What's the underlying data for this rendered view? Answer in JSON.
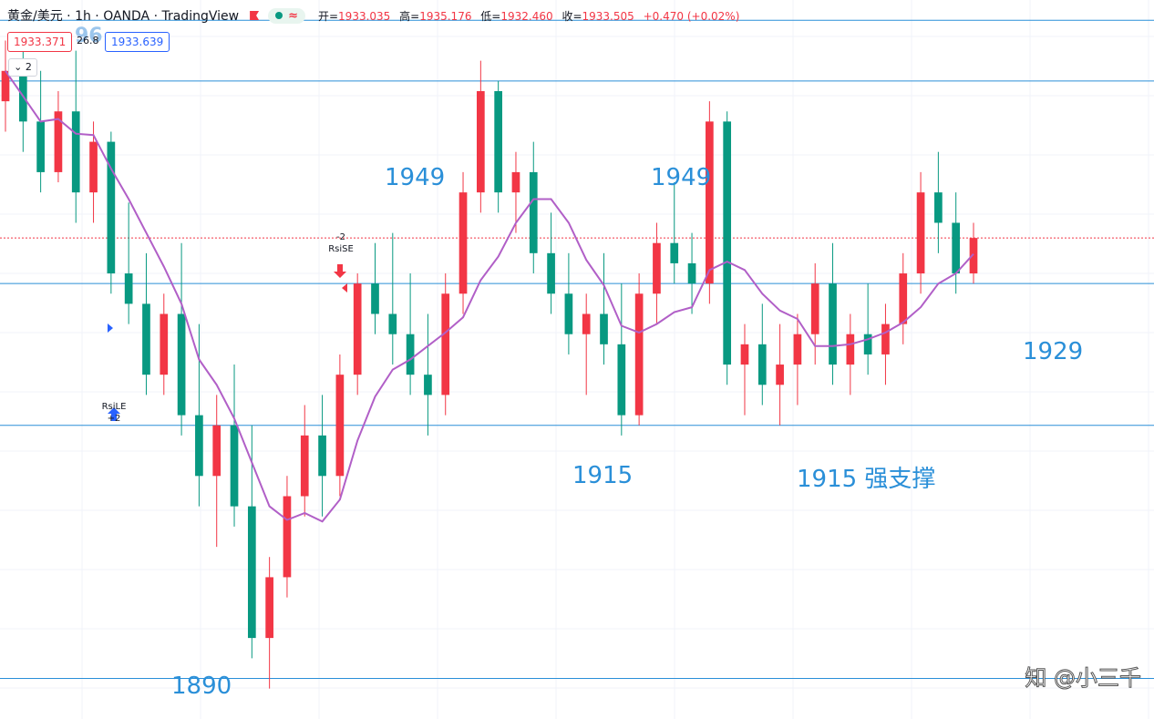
{
  "header": {
    "symbol": "黄金/美元 · 1h · OANDA · TradingView",
    "ohlc": [
      {
        "label": "开=",
        "value": "1933.035"
      },
      {
        "label": "高=",
        "value": "1935.176"
      },
      {
        "label": "低=",
        "value": "1932.460"
      },
      {
        "label": "收=",
        "value": "1933.505"
      }
    ],
    "change": "+0.470 (+0.02%)",
    "bid": "1933.371",
    "spread": "26.8",
    "ask": "1933.639",
    "indicator_count": "2",
    "ghost_text": "96"
  },
  "annotations": {
    "level_1949_left": "1949",
    "level_1949_right": "1949",
    "level_1929": "1929",
    "level_1915_left": "1915",
    "level_1915_right": "1915 强支撑",
    "level_1890": "1890",
    "short_signal_top": "-2",
    "short_signal_bottom": "RsiSE",
    "long_signal_top": "RsiLE",
    "long_signal_bottom": "+2",
    "watermark": "知 @小三千"
  },
  "colors": {
    "up": "#f23645",
    "down": "#089981",
    "ma": "#b15fc7",
    "level_line": "#2a8fd8",
    "current_price_line": "#f23645"
  },
  "chart_data": {
    "type": "candlestick",
    "symbol": "XAU/USD",
    "interval": "1h",
    "ylim": [
      1886,
      1957
    ],
    "levels": [
      1955,
      1949,
      1929,
      1915,
      1890
    ],
    "current_price": 1933.5,
    "candles_ohlc": [
      [
        1947.0,
        1953.0,
        1944.0,
        1950.0
      ],
      [
        1950.0,
        1952.0,
        1942.0,
        1945.0
      ],
      [
        1945.0,
        1950.0,
        1938.0,
        1940.0
      ],
      [
        1940.0,
        1948.0,
        1939.0,
        1946.0
      ],
      [
        1946.0,
        1952.0,
        1935.0,
        1938.0
      ],
      [
        1938.0,
        1945.0,
        1935.0,
        1943.0
      ],
      [
        1943.0,
        1944.0,
        1928.0,
        1930.0
      ],
      [
        1930.0,
        1937.0,
        1925.0,
        1927.0
      ],
      [
        1927.0,
        1932.0,
        1918.0,
        1920.0
      ],
      [
        1920.0,
        1928.0,
        1918.0,
        1926.0
      ],
      [
        1926.0,
        1933.0,
        1914.0,
        1916.0
      ],
      [
        1916.0,
        1925.0,
        1907.0,
        1910.0
      ],
      [
        1910.0,
        1918.0,
        1903.0,
        1915.0
      ],
      [
        1915.0,
        1921.0,
        1905.0,
        1907.0
      ],
      [
        1907.0,
        1915.0,
        1892.0,
        1894.0
      ],
      [
        1894.0,
        1902.0,
        1889.0,
        1900.0
      ],
      [
        1900.0,
        1910.0,
        1898.0,
        1908.0
      ],
      [
        1908.0,
        1917.0,
        1906.0,
        1914.0
      ],
      [
        1914.0,
        1918.0,
        1906.0,
        1910.0
      ],
      [
        1910.0,
        1922.0,
        1908.0,
        1920.0
      ],
      [
        1920.0,
        1930.0,
        1918.0,
        1929.0
      ],
      [
        1929.0,
        1933.0,
        1924.0,
        1926.0
      ],
      [
        1926.0,
        1934.0,
        1921.0,
        1924.0
      ],
      [
        1924.0,
        1930.0,
        1918.0,
        1920.0
      ],
      [
        1920.0,
        1926.0,
        1914.0,
        1918.0
      ],
      [
        1918.0,
        1930.0,
        1916.0,
        1928.0
      ],
      [
        1928.0,
        1940.0,
        1926.0,
        1938.0
      ],
      [
        1938.0,
        1951.0,
        1936.0,
        1948.0
      ],
      [
        1948.0,
        1949.0,
        1936.0,
        1938.0
      ],
      [
        1938.0,
        1942.0,
        1934.0,
        1940.0
      ],
      [
        1940.0,
        1943.0,
        1930.0,
        1932.0
      ],
      [
        1932.0,
        1936.0,
        1926.0,
        1928.0
      ],
      [
        1928.0,
        1932.0,
        1922.0,
        1924.0
      ],
      [
        1924.0,
        1928.0,
        1918.0,
        1926.0
      ],
      [
        1926.0,
        1932.0,
        1921.0,
        1923.0
      ],
      [
        1923.0,
        1929.0,
        1914.0,
        1916.0
      ],
      [
        1916.0,
        1930.0,
        1915.0,
        1928.0
      ],
      [
        1928.0,
        1935.0,
        1925.0,
        1933.0
      ],
      [
        1933.0,
        1939.0,
        1929.0,
        1931.0
      ],
      [
        1931.0,
        1934.0,
        1926.0,
        1929.0
      ],
      [
        1929.0,
        1947.0,
        1927.0,
        1945.0
      ],
      [
        1945.0,
        1946.0,
        1919.0,
        1921.0
      ],
      [
        1921.0,
        1925.0,
        1916.0,
        1923.0
      ],
      [
        1923.0,
        1927.0,
        1917.0,
        1919.0
      ],
      [
        1919.0,
        1925.0,
        1915.0,
        1921.0
      ],
      [
        1921.0,
        1926.0,
        1917.0,
        1924.0
      ],
      [
        1924.0,
        1931.0,
        1921.0,
        1929.0
      ],
      [
        1929.0,
        1933.0,
        1919.0,
        1921.0
      ],
      [
        1921.0,
        1926.0,
        1918.0,
        1924.0
      ],
      [
        1924.0,
        1929.0,
        1920.0,
        1922.0
      ],
      [
        1922.0,
        1927.0,
        1919.0,
        1925.0
      ],
      [
        1925.0,
        1932.0,
        1923.0,
        1930.0
      ],
      [
        1930.0,
        1940.0,
        1928.0,
        1938.0
      ],
      [
        1938.0,
        1942.0,
        1932.0,
        1935.0
      ],
      [
        1935.0,
        1938.0,
        1928.0,
        1930.0
      ],
      [
        1930.0,
        1935.0,
        1929.0,
        1933.5
      ]
    ]
  }
}
